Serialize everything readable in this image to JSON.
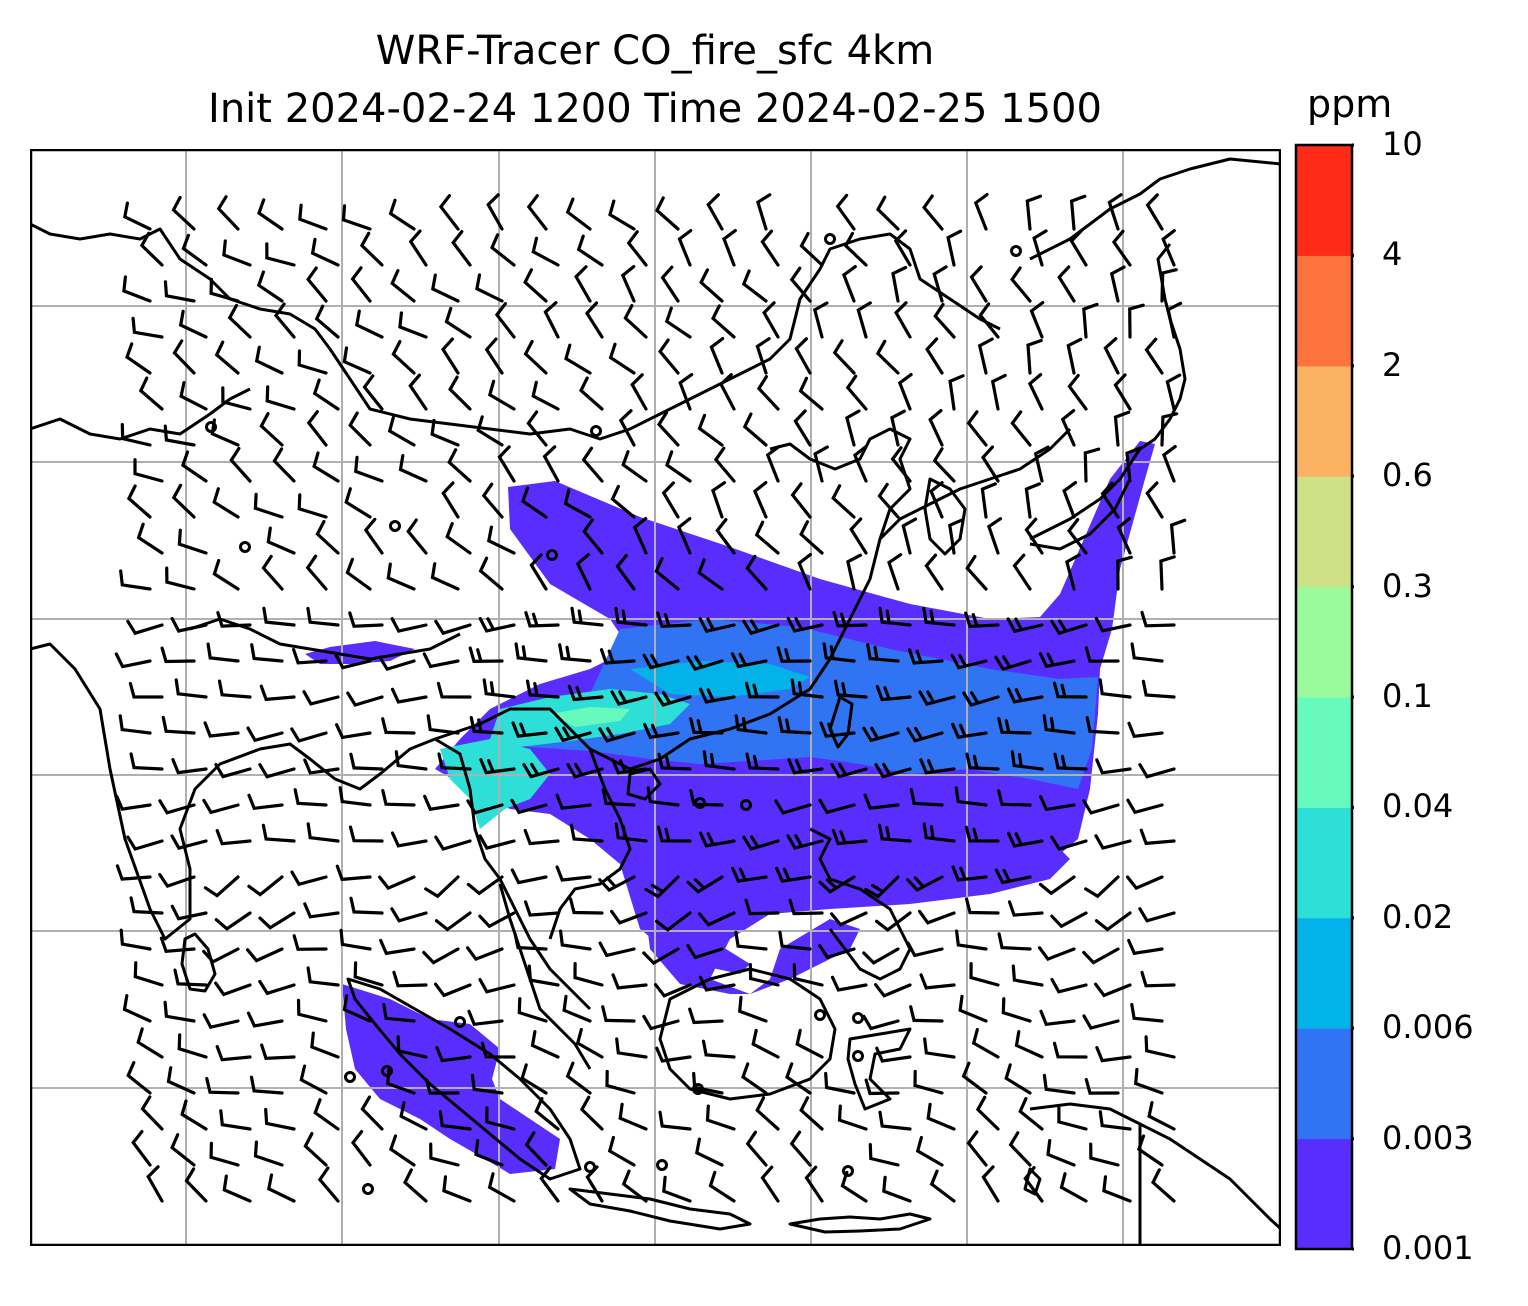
{
  "title": {
    "line1": "WRF-Tracer CO_fire_sfc 4km",
    "line2": "Init 2024-02-24 1200 Time 2024-02-25 1500"
  },
  "colorbar": {
    "unit": "ppm",
    "levels": [
      "0.001",
      "0.003",
      "0.006",
      "0.02",
      "0.04",
      "0.1",
      "0.3",
      "0.6",
      "2",
      "4",
      "10"
    ],
    "colors": [
      "#5a2dff",
      "#3073f3",
      "#04b2ea",
      "#2ddfd7",
      "#66fbbc",
      "#9afa9c",
      "#cfe187",
      "#fbb262",
      "#fd733c",
      "#fe2c17"
    ]
  },
  "map": {
    "frame_color": "#000000",
    "grid_color": "#b0b0b0",
    "coastline_color": "#000000",
    "barb_color": "#000000",
    "field_name": "CO_fire_sfc"
  }
}
